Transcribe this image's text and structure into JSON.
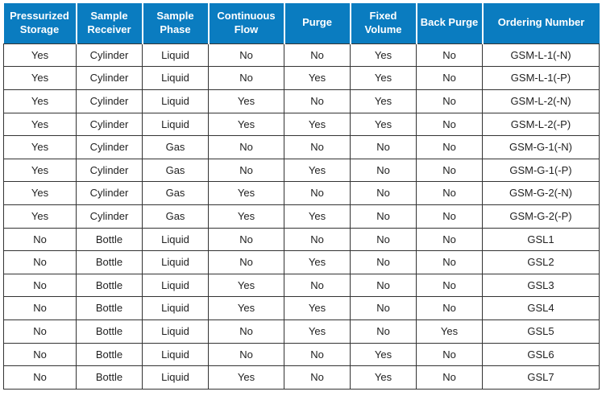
{
  "table": {
    "header_bg": "#0a7cc0",
    "header_fg": "#ffffff",
    "border_color": "#333333",
    "cell_fg": "#222222",
    "columns": [
      "Pressurized Storage",
      "Sample Receiver",
      "Sample Phase",
      "Continuous Flow",
      "Purge",
      "Fixed Volume",
      "Back Purge",
      "Ordering Number"
    ],
    "rows": [
      [
        "Yes",
        "Cylinder",
        "Liquid",
        "No",
        "No",
        "Yes",
        "No",
        "GSM-L-1(-N)"
      ],
      [
        "Yes",
        "Cylinder",
        "Liquid",
        "No",
        "Yes",
        "Yes",
        "No",
        "GSM-L-1(-P)"
      ],
      [
        "Yes",
        "Cylinder",
        "Liquid",
        "Yes",
        "No",
        "Yes",
        "No",
        "GSM-L-2(-N)"
      ],
      [
        "Yes",
        "Cylinder",
        "Liquid",
        "Yes",
        "Yes",
        "Yes",
        "No",
        "GSM-L-2(-P)"
      ],
      [
        "Yes",
        "Cylinder",
        "Gas",
        "No",
        "No",
        "No",
        "No",
        "GSM-G-1(-N)"
      ],
      [
        "Yes",
        "Cylinder",
        "Gas",
        "No",
        "Yes",
        "No",
        "No",
        "GSM-G-1(-P)"
      ],
      [
        "Yes",
        "Cylinder",
        "Gas",
        "Yes",
        "No",
        "No",
        "No",
        "GSM-G-2(-N)"
      ],
      [
        "Yes",
        "Cylinder",
        "Gas",
        "Yes",
        "Yes",
        "No",
        "No",
        "GSM-G-2(-P)"
      ],
      [
        "No",
        "Bottle",
        "Liquid",
        "No",
        "No",
        "No",
        "No",
        "GSL1"
      ],
      [
        "No",
        "Bottle",
        "Liquid",
        "No",
        "Yes",
        "No",
        "No",
        "GSL2"
      ],
      [
        "No",
        "Bottle",
        "Liquid",
        "Yes",
        "No",
        "No",
        "No",
        "GSL3"
      ],
      [
        "No",
        "Bottle",
        "Liquid",
        "Yes",
        "Yes",
        "No",
        "No",
        "GSL4"
      ],
      [
        "No",
        "Bottle",
        "Liquid",
        "No",
        "Yes",
        "No",
        "Yes",
        "GSL5"
      ],
      [
        "No",
        "Bottle",
        "Liquid",
        "No",
        "No",
        "Yes",
        "No",
        "GSL6"
      ],
      [
        "No",
        "Bottle",
        "Liquid",
        "Yes",
        "No",
        "Yes",
        "No",
        "GSL7"
      ]
    ]
  }
}
